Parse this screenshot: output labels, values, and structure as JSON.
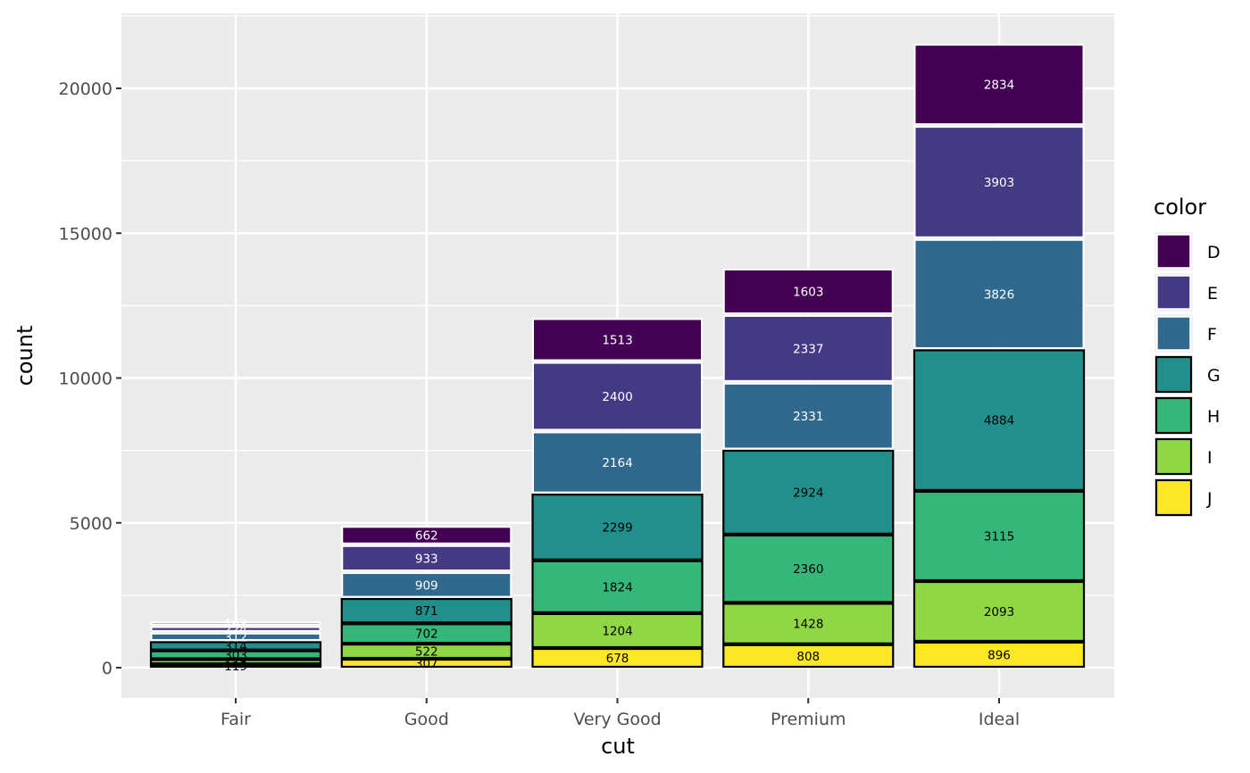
{
  "chart_data": {
    "type": "bar",
    "stacked": true,
    "title": "",
    "xlabel": "cut",
    "ylabel": "count",
    "categories": [
      "Fair",
      "Good",
      "Very Good",
      "Premium",
      "Ideal"
    ],
    "ylim": [
      0,
      22600
    ],
    "yticks": [
      0,
      5000,
      10000,
      15000,
      20000
    ],
    "ytick_labels": [
      "0",
      "5000",
      "10000",
      "15000",
      "20000"
    ],
    "grid": true,
    "stack_order_top_to_bottom": [
      "D",
      "E",
      "F",
      "G",
      "H",
      "I",
      "J"
    ],
    "series": [
      {
        "name": "D",
        "color": "#440154",
        "outline": "#ffffff",
        "label_color": "#ffffff",
        "values": [
          163,
          662,
          1513,
          1603,
          2834
        ]
      },
      {
        "name": "E",
        "color": "#443A83",
        "outline": "#ffffff",
        "label_color": "#ffffff",
        "values": [
          224,
          933,
          2400,
          2337,
          3903
        ]
      },
      {
        "name": "F",
        "color": "#31688E",
        "outline": "#ffffff",
        "label_color": "#ffffff",
        "values": [
          312,
          909,
          2164,
          2331,
          3826
        ]
      },
      {
        "name": "G",
        "color": "#21908C",
        "outline": "#000000",
        "label_color": "#000000",
        "values": [
          314,
          871,
          2299,
          2924,
          4884
        ]
      },
      {
        "name": "H",
        "color": "#35B779",
        "outline": "#000000",
        "label_color": "#000000",
        "values": [
          303,
          702,
          1824,
          2360,
          3115
        ]
      },
      {
        "name": "I",
        "color": "#8FD744",
        "outline": "#000000",
        "label_color": "#000000",
        "values": [
          175,
          522,
          1204,
          1428,
          2093
        ]
      },
      {
        "name": "J",
        "color": "#FDE725",
        "outline": "#000000",
        "label_color": "#000000",
        "values": [
          119,
          307,
          678,
          808,
          896
        ]
      }
    ],
    "legend": {
      "title": "color",
      "position": "right",
      "entries": [
        "D",
        "E",
        "F",
        "G",
        "H",
        "I",
        "J"
      ]
    },
    "panel_background": "#EBEBEB",
    "grid_color": "#FFFFFF"
  }
}
